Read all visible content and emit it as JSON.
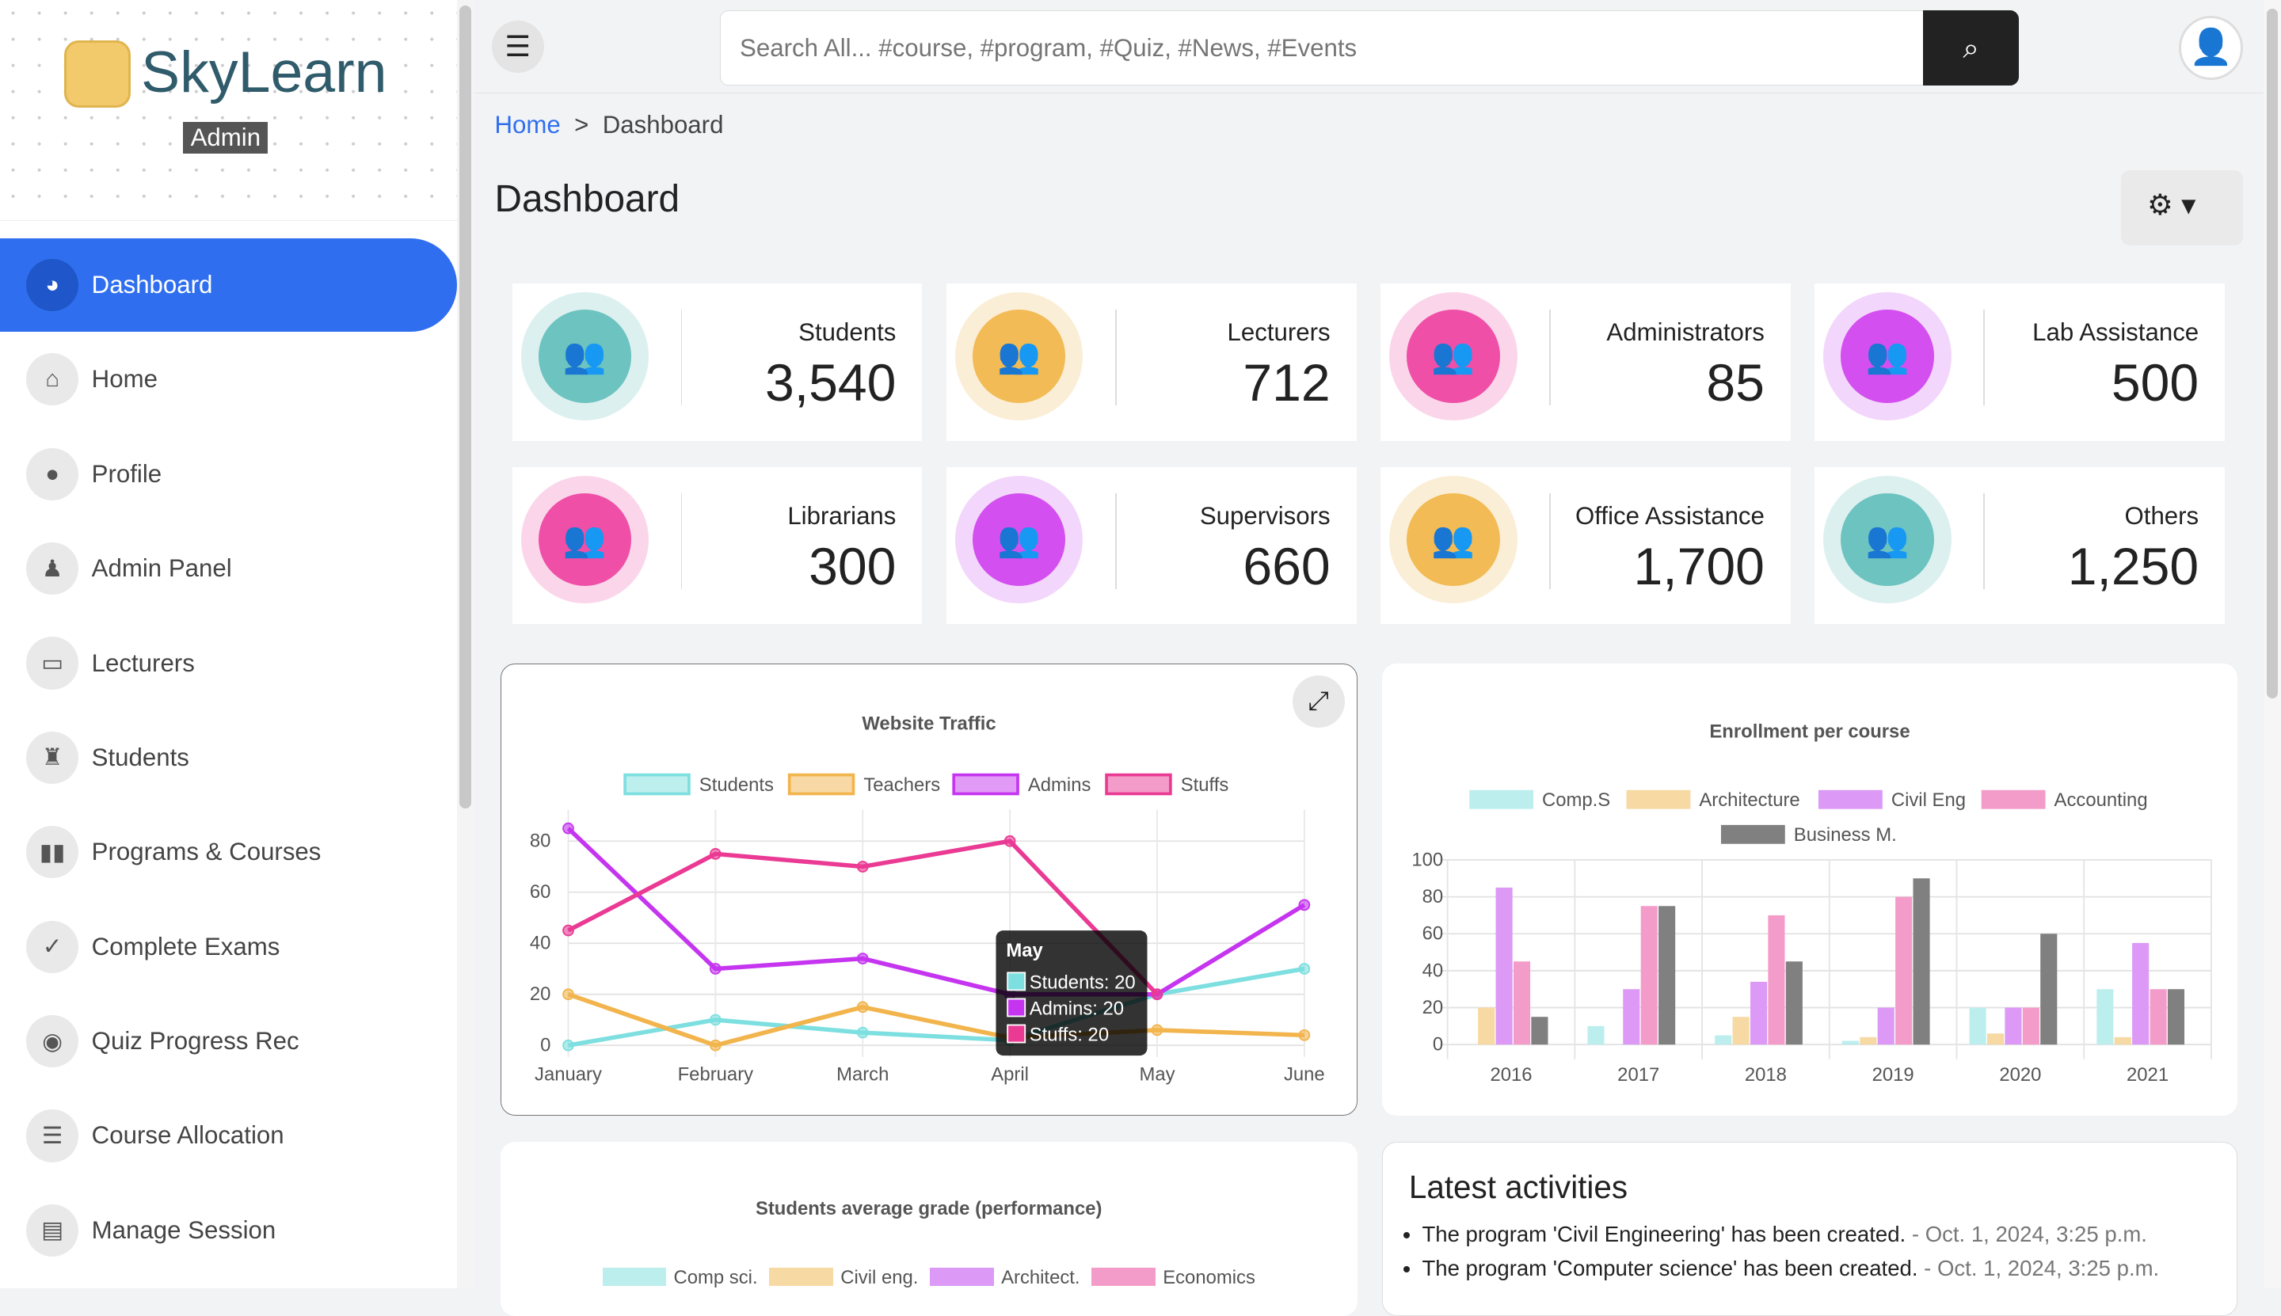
{
  "brand": {
    "name": "SkyLearn",
    "badge": "Admin"
  },
  "sidebar": {
    "items": [
      {
        "label": "Dashboard",
        "icon": "palette-icon",
        "active": true
      },
      {
        "label": "Home",
        "icon": "home-icon"
      },
      {
        "label": "Profile",
        "icon": "user-icon"
      },
      {
        "label": "Admin Panel",
        "icon": "user-tie-icon"
      },
      {
        "label": "Lecturers",
        "icon": "chalkboard-teacher-icon"
      },
      {
        "label": "Students",
        "icon": "graduate-icon"
      },
      {
        "label": "Programs & Courses",
        "icon": "book-icon"
      },
      {
        "label": "Complete Exams",
        "icon": "check-icon"
      },
      {
        "label": "Quiz Progress Rec",
        "icon": "record-icon"
      },
      {
        "label": "Course Allocation",
        "icon": "list-icon"
      },
      {
        "label": "Manage Session",
        "icon": "calendar-icon"
      }
    ]
  },
  "topbar": {
    "search_placeholder": "Search All... #course, #program, #Quiz, #News, #Events"
  },
  "breadcrumb": {
    "home": "Home",
    "sep": ">",
    "current": "Dashboard"
  },
  "page_title": "Dashboard",
  "stats": [
    {
      "label": "Students",
      "value": "3,540",
      "color": "#6cc3c0",
      "ring": "#dcf0ef"
    },
    {
      "label": "Lecturers",
      "value": "712",
      "color": "#f2bb55",
      "ring": "#fbeed6"
    },
    {
      "label": "Administrators",
      "value": "85",
      "color": "#ef4fa6",
      "ring": "#fbd6ea"
    },
    {
      "label": "Lab Assistance",
      "value": "500",
      "color": "#d34ff0",
      "ring": "#f3d6fb"
    },
    {
      "label": "Librarians",
      "value": "300",
      "color": "#ef4fa6",
      "ring": "#fbd6ea"
    },
    {
      "label": "Supervisors",
      "value": "660",
      "color": "#d34ff0",
      "ring": "#f3d6fb"
    },
    {
      "label": "Office Assistance",
      "value": "1,700",
      "color": "#f2bb55",
      "ring": "#fbeed6"
    },
    {
      "label": "Others",
      "value": "1,250",
      "color": "#6cc3c0",
      "ring": "#dcf0ef"
    }
  ],
  "chart_data": [
    {
      "type": "line",
      "title": "Website Traffic",
      "categories": [
        "January",
        "February",
        "March",
        "April",
        "May",
        "June"
      ],
      "ylim": [
        0,
        90
      ],
      "yticks": [
        0,
        20,
        40,
        60,
        80
      ],
      "grid": true,
      "legend": "top",
      "series": [
        {
          "name": "Students",
          "color": "#7ddfdf",
          "values": [
            0,
            10,
            5,
            2,
            20,
            30
          ]
        },
        {
          "name": "Teachers",
          "color": "#f2b44c",
          "values": [
            20,
            0,
            15,
            3,
            6,
            4
          ]
        },
        {
          "name": "Admins",
          "color": "#c535f0",
          "values": [
            85,
            30,
            34,
            20,
            20,
            55
          ]
        },
        {
          "name": "Stuffs",
          "color": "#ea3a94",
          "values": [
            45,
            75,
            70,
            80,
            20,
            null
          ]
        }
      ],
      "tooltip": {
        "title": "May",
        "lines": [
          "Students: 20",
          "Admins: 20",
          "Stuffs: 20"
        ]
      }
    },
    {
      "type": "bar",
      "title": "Enrollment per course",
      "categories": [
        "2016",
        "2017",
        "2018",
        "2019",
        "2020",
        "2021"
      ],
      "ylim": [
        0,
        100
      ],
      "yticks": [
        0,
        20,
        40,
        60,
        80,
        100
      ],
      "grid": true,
      "legend": "top",
      "series": [
        {
          "name": "Comp.S",
          "color": "#bdeeee",
          "values": [
            0,
            10,
            5,
            2,
            20,
            30
          ]
        },
        {
          "name": "Architecture",
          "color": "#f7d9a3",
          "values": [
            20,
            0,
            15,
            4,
            6,
            4
          ]
        },
        {
          "name": "Civil Eng",
          "color": "#dc99f6",
          "values": [
            85,
            30,
            34,
            20,
            20,
            55
          ]
        },
        {
          "name": "Accounting",
          "color": "#f49cc9",
          "values": [
            45,
            75,
            70,
            80,
            20,
            30
          ]
        },
        {
          "name": "Business M.",
          "color": "#808080",
          "values": [
            15,
            75,
            45,
            90,
            60,
            30
          ]
        }
      ]
    },
    {
      "type": "bar",
      "title": "Students average grade (performance)",
      "series": [
        {
          "name": "Comp sci.",
          "color": "#bdeeee"
        },
        {
          "name": "Civil eng.",
          "color": "#f7d9a3"
        },
        {
          "name": "Architect.",
          "color": "#dc99f6"
        },
        {
          "name": "Economics",
          "color": "#f49cc9"
        }
      ]
    }
  ],
  "activities": {
    "title": "Latest activities",
    "items": [
      {
        "text": "The program 'Civil Engineering' has been created.",
        "time": "- Oct. 1, 2024, 3:25 p.m."
      },
      {
        "text": "The program 'Computer science' has been created.",
        "time": "- Oct. 1, 2024, 3:25 p.m."
      }
    ]
  }
}
